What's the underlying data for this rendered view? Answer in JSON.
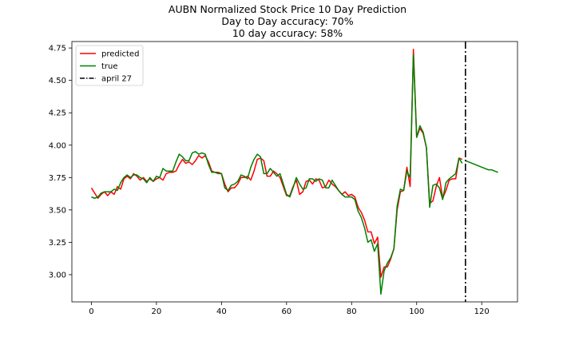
{
  "chart_data": {
    "type": "line",
    "title_lines": [
      "AUBN Normalized Stock Price 10 Day Prediction",
      "Day to Day accuracy: 70%",
      "10 day accuracy: 58%"
    ],
    "xlabel": "",
    "ylabel": "",
    "xlim": [
      -6,
      131
    ],
    "ylim": [
      2.79,
      4.8
    ],
    "xticks": [
      0,
      20,
      40,
      60,
      80,
      100,
      120
    ],
    "yticks": [
      3.0,
      3.25,
      3.5,
      3.75,
      4.0,
      4.25,
      4.5,
      4.75
    ],
    "ytick_labels": [
      "3.00",
      "3.25",
      "3.50",
      "3.75",
      "4.00",
      "4.25",
      "4.50",
      "4.75"
    ],
    "grid": false,
    "legend_position": "top-left",
    "legend": [
      {
        "label": "predicted",
        "color": "#ff0000",
        "style": "solid"
      },
      {
        "label": "true",
        "color": "#008000",
        "style": "solid"
      },
      {
        "label": "april 27",
        "color": "#000000",
        "style": "dashdot"
      }
    ],
    "series": [
      {
        "name": "predicted",
        "color": "#ff0000",
        "x_start": 0,
        "values": [
          3.67,
          3.63,
          3.59,
          3.62,
          3.64,
          3.61,
          3.64,
          3.62,
          3.68,
          3.66,
          3.74,
          3.76,
          3.74,
          3.78,
          3.76,
          3.73,
          3.75,
          3.72,
          3.74,
          3.72,
          3.74,
          3.75,
          3.73,
          3.78,
          3.79,
          3.79,
          3.8,
          3.85,
          3.89,
          3.86,
          3.87,
          3.85,
          3.88,
          3.92,
          3.9,
          3.92,
          3.87,
          3.8,
          3.79,
          3.79,
          3.78,
          3.7,
          3.64,
          3.67,
          3.67,
          3.7,
          3.75,
          3.75,
          3.76,
          3.73,
          3.8,
          3.89,
          3.9,
          3.88,
          3.76,
          3.76,
          3.8,
          3.78,
          3.75,
          3.68,
          3.61,
          3.61,
          3.68,
          3.73,
          3.62,
          3.64,
          3.72,
          3.73,
          3.7,
          3.74,
          3.73,
          3.67,
          3.68,
          3.73,
          3.7,
          3.68,
          3.65,
          3.62,
          3.64,
          3.61,
          3.62,
          3.6,
          3.52,
          3.48,
          3.42,
          3.33,
          3.33,
          3.24,
          3.29,
          2.98,
          3.06,
          3.06,
          3.12,
          3.2,
          3.5,
          3.64,
          3.65,
          3.83,
          3.68,
          4.74,
          4.06,
          4.13,
          4.09,
          3.98,
          3.55,
          3.57,
          3.68,
          3.75,
          3.59,
          3.65,
          3.73,
          3.74,
          3.74,
          3.9,
          3.89
        ]
      },
      {
        "name": "true",
        "color": "#008000",
        "x_start": 0,
        "values": [
          3.6,
          3.59,
          3.6,
          3.63,
          3.64,
          3.64,
          3.64,
          3.66,
          3.65,
          3.71,
          3.75,
          3.77,
          3.75,
          3.77,
          3.77,
          3.75,
          3.74,
          3.71,
          3.75,
          3.72,
          3.76,
          3.75,
          3.82,
          3.8,
          3.8,
          3.8,
          3.87,
          3.93,
          3.91,
          3.88,
          3.88,
          3.94,
          3.95,
          3.93,
          3.94,
          3.93,
          3.85,
          3.79,
          3.79,
          3.78,
          3.78,
          3.67,
          3.65,
          3.69,
          3.7,
          3.72,
          3.77,
          3.76,
          3.74,
          3.83,
          3.89,
          3.93,
          3.91,
          3.78,
          3.78,
          3.82,
          3.79,
          3.76,
          3.78,
          3.7,
          3.62,
          3.6,
          3.67,
          3.75,
          3.7,
          3.66,
          3.67,
          3.74,
          3.74,
          3.72,
          3.74,
          3.73,
          3.67,
          3.67,
          3.73,
          3.69,
          3.65,
          3.62,
          3.6,
          3.6,
          3.6,
          3.58,
          3.49,
          3.44,
          3.36,
          3.25,
          3.27,
          3.18,
          3.24,
          2.85,
          3.03,
          3.09,
          3.13,
          3.2,
          3.53,
          3.66,
          3.65,
          3.8,
          3.75,
          4.7,
          4.06,
          4.15,
          4.1,
          3.98,
          3.52,
          3.69,
          3.7,
          3.67,
          3.58,
          3.71,
          3.74,
          3.76,
          3.78,
          3.9,
          3.86
        ]
      },
      {
        "name": "forecast",
        "color": "#008000",
        "x_start": 115,
        "values": [
          3.88,
          3.87,
          3.86,
          3.85,
          3.84,
          3.83,
          3.82,
          3.81,
          3.81,
          3.8,
          3.79
        ]
      }
    ],
    "vline": {
      "label": "april 27",
      "x": 115,
      "color": "#000000",
      "style": "dashdot"
    }
  }
}
